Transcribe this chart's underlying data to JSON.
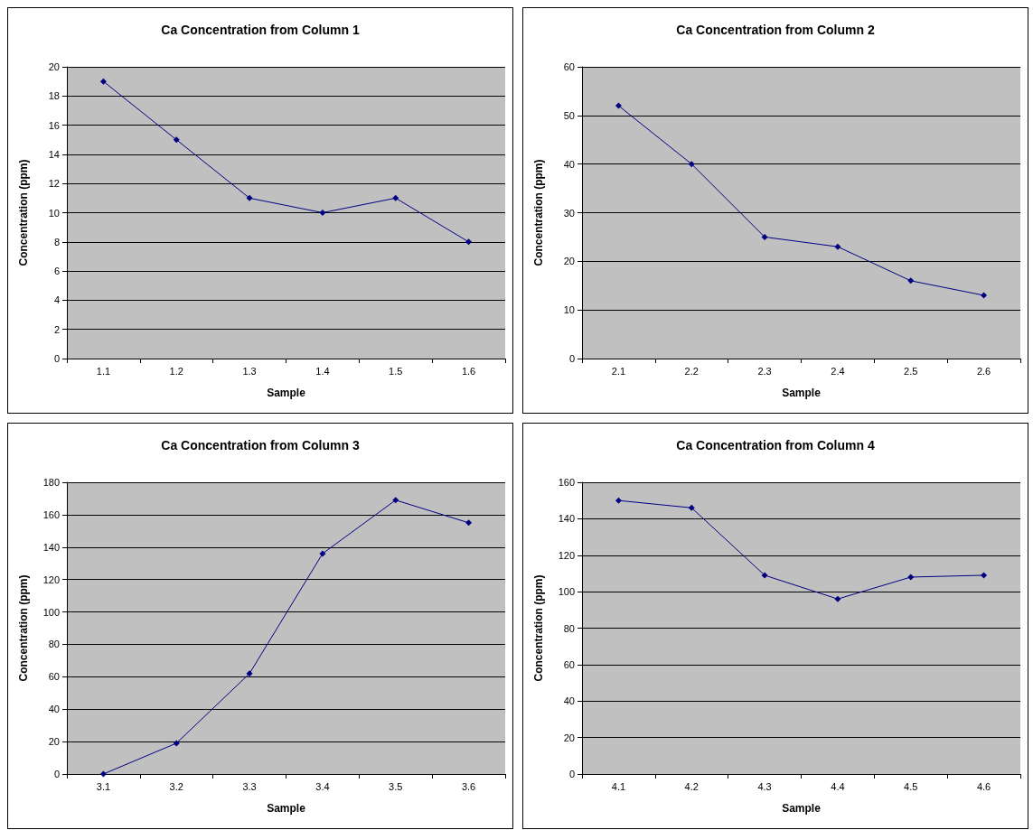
{
  "chart_data": [
    {
      "type": "line",
      "title": "Ca Concentration from Column 1",
      "xlabel": "Sample",
      "ylabel": "Concentration (ppm)",
      "categories": [
        "1.1",
        "1.2",
        "1.3",
        "1.4",
        "1.5",
        "1.6"
      ],
      "series": [
        {
          "color": "#000080",
          "values": [
            19,
            15,
            11,
            10,
            11,
            8
          ]
        }
      ],
      "ylim": [
        0,
        20
      ],
      "yticks": [
        0,
        2,
        4,
        6,
        8,
        10,
        12,
        14,
        16,
        18,
        20
      ],
      "grid": "y",
      "marker": "diamond",
      "line_style": "solid"
    },
    {
      "type": "line",
      "title": "Ca Concentration from Column 2",
      "xlabel": "Sample",
      "ylabel": "Concentration (ppm)",
      "categories": [
        "2.1",
        "2.2",
        "2.3",
        "2.4",
        "2.5",
        "2.6"
      ],
      "series": [
        {
          "color": "#000080",
          "values": [
            52,
            40,
            25,
            23,
            16,
            13
          ]
        }
      ],
      "ylim": [
        0,
        60
      ],
      "yticks": [
        0,
        10,
        20,
        30,
        40,
        50,
        60
      ],
      "grid": "y",
      "marker": "diamond",
      "line_style": "solid"
    },
    {
      "type": "line",
      "title": "Ca Concentration from Column 3",
      "xlabel": "Sample",
      "ylabel": "Concentration (ppm)",
      "categories": [
        "3.1",
        "3.2",
        "3.3",
        "3.4",
        "3.5",
        "3.6"
      ],
      "series": [
        {
          "color": "#000080",
          "values": [
            0,
            19,
            62,
            136,
            169,
            155
          ]
        }
      ],
      "ylim": [
        0,
        180
      ],
      "yticks": [
        0,
        20,
        40,
        60,
        80,
        100,
        120,
        140,
        160,
        180
      ],
      "grid": "y",
      "marker": "diamond",
      "line_style": "solid"
    },
    {
      "type": "line",
      "title": "Ca Concentration from Column 4",
      "xlabel": "Sample",
      "ylabel": "Concentration (ppm)",
      "categories": [
        "4.1",
        "4.2",
        "4.3",
        "4.4",
        "4.5",
        "4.6"
      ],
      "series": [
        {
          "color": "#000080",
          "values": [
            150,
            146,
            109,
            96,
            108,
            109
          ]
        }
      ],
      "ylim": [
        0,
        160
      ],
      "yticks": [
        0,
        20,
        40,
        60,
        80,
        100,
        120,
        140,
        160
      ],
      "grid": "y",
      "marker": "diamond",
      "line_style": "solid"
    }
  ]
}
